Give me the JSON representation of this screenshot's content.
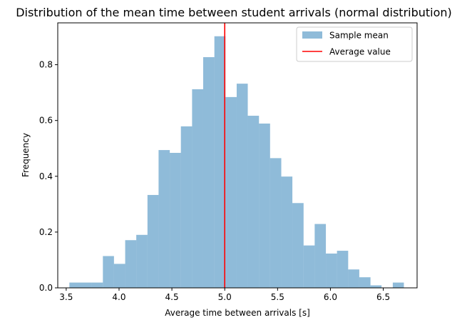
{
  "chart_data": {
    "type": "bar",
    "title": "Distribution of the mean time between student arrivals (normal distribution)",
    "xlabel": "Average time between arrivals [s]",
    "ylabel": "Frequency",
    "xlim": [
      3.42,
      6.82
    ],
    "ylim": [
      0,
      0.95
    ],
    "xticks": [
      3.5,
      4.0,
      4.5,
      5.0,
      5.5,
      6.0,
      6.5
    ],
    "xtick_labels": [
      "3.5",
      "4.0",
      "4.5",
      "5.0",
      "5.5",
      "6.0",
      "6.5"
    ],
    "yticks": [
      0.0,
      0.2,
      0.4,
      0.6,
      0.8
    ],
    "ytick_labels": [
      "0.0",
      "0.2",
      "0.4",
      "0.6",
      "0.8"
    ],
    "grid": false,
    "legend_position": "top-right",
    "series": [
      {
        "name": "Sample mean",
        "kind": "histogram",
        "color": "#1f77b4",
        "opacity": 0.5,
        "bin_edges": [
          3.53,
          3.636,
          3.741,
          3.847,
          3.952,
          4.058,
          4.163,
          4.269,
          4.374,
          4.48,
          4.585,
          4.691,
          4.796,
          4.902,
          5.007,
          5.113,
          5.218,
          5.324,
          5.429,
          5.535,
          5.64,
          5.746,
          5.851,
          5.957,
          6.062,
          6.168,
          6.273,
          6.379,
          6.484,
          6.59,
          6.695
        ],
        "values": [
          0.019,
          0.019,
          0.019,
          0.114,
          0.086,
          0.171,
          0.19,
          0.333,
          0.494,
          0.484,
          0.579,
          0.712,
          0.827,
          0.902,
          0.684,
          0.732,
          0.617,
          0.589,
          0.465,
          0.399,
          0.304,
          0.152,
          0.229,
          0.123,
          0.133,
          0.066,
          0.038,
          0.009,
          0.0,
          0.019
        ]
      },
      {
        "name": "Average value",
        "kind": "vline",
        "x": 5.0,
        "color": "#ff0000"
      }
    ]
  }
}
